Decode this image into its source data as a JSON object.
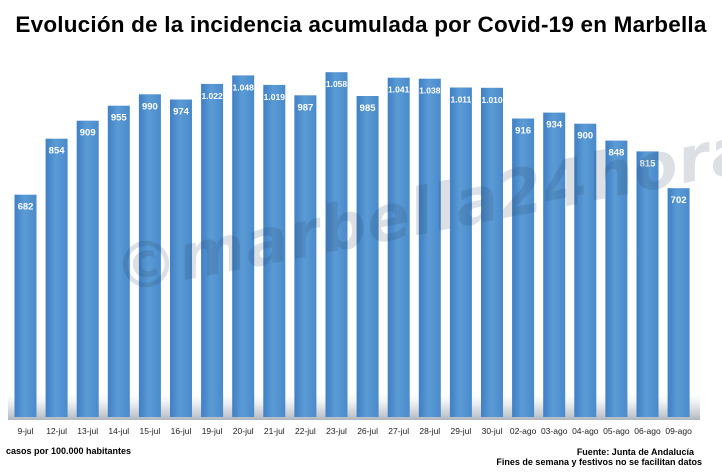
{
  "watermark_text": "©marbella24horas.es",
  "notes": {
    "left": "casos por 100.000 habitantes",
    "source": "Fuente: Junta de Andalucía",
    "weekend": "Fines de semana y festivos no se facilitan datos"
  },
  "chart_data": {
    "type": "bar",
    "title": "Evolución de la incidencia acumulada por Covid-19 en Marbella",
    "categories": [
      "9-jul",
      "12-jul",
      "13-jul",
      "14-jul",
      "15-jul",
      "16-jul",
      "19-jul",
      "20-jul",
      "21-jul",
      "22-jul",
      "23-jul",
      "26-jul",
      "27-jul",
      "28-jul",
      "29-jul",
      "30-jul",
      "02-ago",
      "03-ago",
      "04-ago",
      "05-ago",
      "06-ago",
      "09-ago"
    ],
    "values": [
      682,
      854,
      909,
      955,
      990,
      974,
      1022,
      1048,
      1019,
      987,
      1058,
      985,
      1041,
      1038,
      1011,
      1010,
      916,
      934,
      900,
      848,
      815,
      702
    ],
    "value_labels": [
      "682",
      "854",
      "909",
      "955",
      "990",
      "974",
      "1.022",
      "1.048",
      "1.019",
      "987",
      "1.058",
      "985",
      "1.041",
      "1.038",
      "1.011",
      "1.010",
      "916",
      "934",
      "900",
      "848",
      "815",
      "702"
    ],
    "ylim": [
      0,
      1080
    ],
    "grid": false,
    "bar_color": "#5b9bd5",
    "label_color": "#ffffff"
  }
}
